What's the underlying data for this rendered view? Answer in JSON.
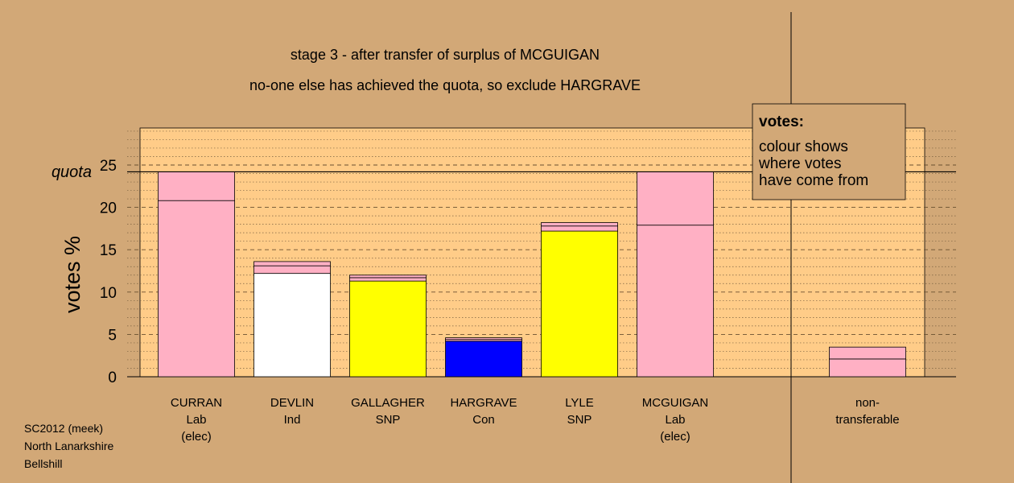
{
  "chart_data": {
    "type": "bar",
    "title": "stage 3 - after transfer of surplus of MCGUIGAN",
    "subtitle": "no-one else has achieved the quota, so exclude HARGRAVE",
    "ylabel": "votes %",
    "ylim": [
      0,
      28
    ],
    "yticks": [
      0,
      5,
      10,
      15,
      20,
      25
    ],
    "quota": 24.2,
    "quota_label": "quota",
    "grid": true,
    "colors": {
      "plot_bg": "#ffcc88",
      "page_bg": "#d2a877",
      "Lab": "#ffb0c4",
      "Ind": "#ffffff",
      "SNP": "#ffff00",
      "Con": "#0000ff"
    },
    "candidates": [
      {
        "name": "CURRAN",
        "party": "Lab",
        "status": "(elec)",
        "segments": [
          {
            "value": 20.8,
            "color": "#ffb0c4"
          },
          {
            "value": 3.4,
            "color": "#ffb0c4"
          }
        ]
      },
      {
        "name": "DEVLIN",
        "party": "Ind",
        "status": "",
        "segments": [
          {
            "value": 12.2,
            "color": "#ffffff"
          },
          {
            "value": 0.9,
            "color": "#ffb0c4"
          },
          {
            "value": 0.5,
            "color": "#ffb0c4"
          }
        ]
      },
      {
        "name": "GALLAGHER",
        "party": "SNP",
        "status": "",
        "segments": [
          {
            "value": 11.3,
            "color": "#ffff00"
          },
          {
            "value": 0.4,
            "color": "#ffb0c4"
          },
          {
            "value": 0.3,
            "color": "#ffb0c4"
          }
        ]
      },
      {
        "name": "HARGRAVE",
        "party": "Con",
        "status": "",
        "segments": [
          {
            "value": 4.2,
            "color": "#0000ff"
          },
          {
            "value": 0.2,
            "color": "#ffb0c4"
          },
          {
            "value": 0.2,
            "color": "#ffb0c4"
          }
        ]
      },
      {
        "name": "LYLE",
        "party": "SNP",
        "status": "",
        "segments": [
          {
            "value": 17.2,
            "color": "#ffff00"
          },
          {
            "value": 0.6,
            "color": "#ffb0c4"
          },
          {
            "value": 0.4,
            "color": "#ffb0c4"
          }
        ]
      },
      {
        "name": "MCGUIGAN",
        "party": "Lab",
        "status": "(elec)",
        "segments": [
          {
            "value": 17.9,
            "color": "#ffb0c4"
          },
          {
            "value": 6.3,
            "color": "#ffb0c4"
          }
        ]
      }
    ],
    "nontransferable": {
      "label_line1": "non-",
      "label_line2": "transferable",
      "segments": [
        {
          "value": 2.1,
          "color": "#ffb0c4"
        },
        {
          "value": 1.4,
          "color": "#ffb0c4"
        }
      ]
    },
    "legend": {
      "title": "votes:",
      "lines": [
        "colour shows",
        "where votes",
        "have come from"
      ],
      "placement": "top-right"
    }
  },
  "footer": {
    "line1": "SC2012 (meek)",
    "line2": "North Lanarkshire",
    "line3": "Bellshill"
  }
}
